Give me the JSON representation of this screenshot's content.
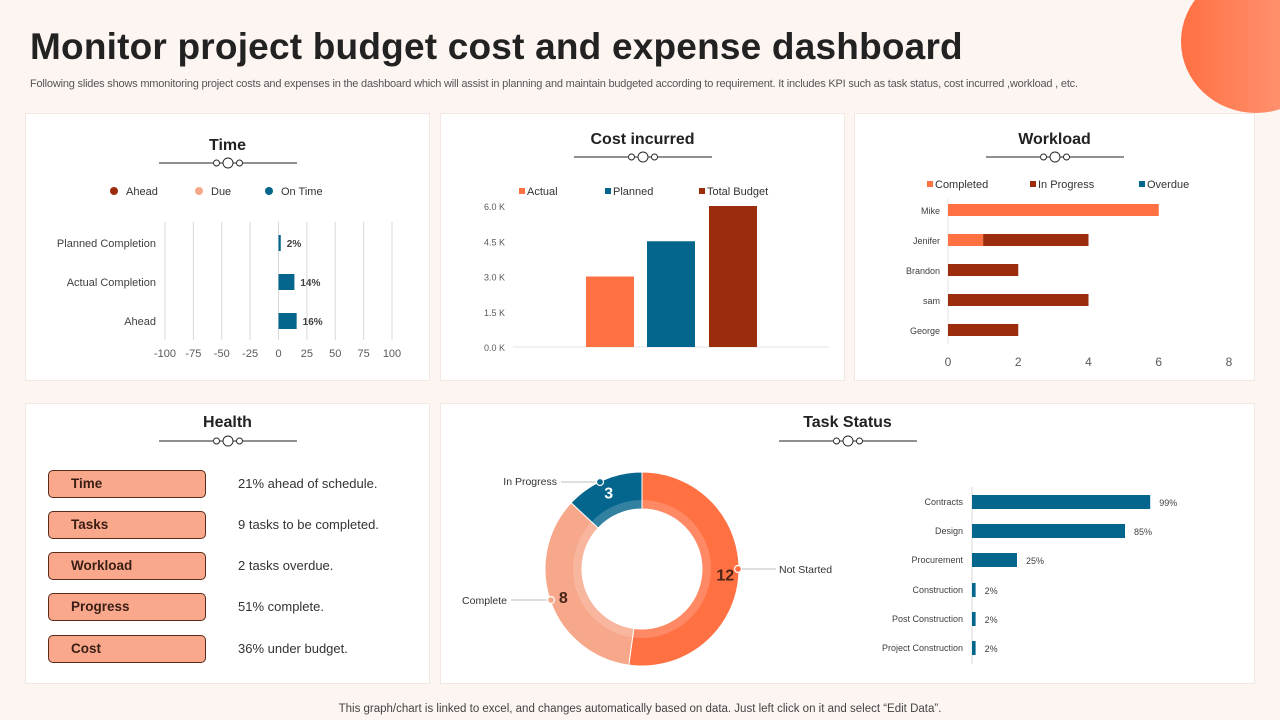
{
  "header": {
    "title": "Monitor project budget cost and expense dashboard",
    "subtitle": "Following slides shows mmonitoring project costs and expenses in the dashboard which will assist in planning and maintain budgeted according to requirement. It includes KPI such as task status, cost incurred ,workload , etc."
  },
  "footer": {
    "note": "This graph/chart is linked to excel,  and changes automatically based on data. Just left click on it and select “Edit Data”."
  },
  "colors": {
    "accent": "#ff7043",
    "dark_red": "#9b2c0c",
    "teal": "#05668d",
    "peach": "#f9a88c",
    "light_peach": "#f7a78a"
  },
  "cards": {
    "time": "Time",
    "cost": "Cost incurred",
    "workload": "Workload",
    "health": "Health",
    "task_status": "Task Status"
  },
  "health": {
    "rows": [
      {
        "label": "Time",
        "text": "21% ahead of schedule."
      },
      {
        "label": "Tasks",
        "text": "9 tasks to be completed."
      },
      {
        "label": "Workload",
        "text": "2 tasks overdue."
      },
      {
        "label": "Progress",
        "text": "51% complete."
      },
      {
        "label": "Cost",
        "text": "36% under budget."
      }
    ]
  },
  "chart_data": [
    {
      "id": "time",
      "type": "bar",
      "orientation": "horizontal",
      "title": "Time",
      "legend": [
        {
          "name": "Ahead",
          "color": "#9b2c0c"
        },
        {
          "name": "Due",
          "color": "#f7a78a"
        },
        {
          "name": "On Time",
          "color": "#05668d"
        }
      ],
      "legend_position": "top",
      "categories": [
        "Planned Completion",
        "Actual Completion",
        "Ahead"
      ],
      "values": [
        2,
        14,
        16
      ],
      "data_labels": [
        "2%",
        "14%",
        "16%"
      ],
      "xlim": [
        -100,
        100
      ],
      "xticks": [
        "-100",
        "-75",
        "-50",
        "-25",
        "0",
        "25",
        "50",
        "75",
        "100"
      ],
      "xtick_values": [
        -100,
        -75,
        -50,
        -25,
        0,
        25,
        50,
        75,
        100
      ],
      "grid": true,
      "bar_color": "#05668d"
    },
    {
      "id": "cost",
      "type": "bar",
      "title": "Cost incurred",
      "legend_position": "top",
      "series": [
        {
          "name": "Actual",
          "value": 3000,
          "color": "#ff7043"
        },
        {
          "name": "Planned",
          "value": 4500,
          "color": "#05668d"
        },
        {
          "name": "Total Budget",
          "value": 6000,
          "color": "#9b2c0c"
        }
      ],
      "ylim": [
        0,
        6000
      ],
      "yticks": [
        "0.0 K",
        "1.5 K",
        "3.0 K",
        "4.5 K",
        "6.0 K"
      ],
      "ytick_values": [
        0,
        1500,
        3000,
        4500,
        6000
      ]
    },
    {
      "id": "workload",
      "type": "bar",
      "orientation": "horizontal",
      "stacked": true,
      "title": "Workload",
      "legend_position": "top",
      "categories": [
        "Mike",
        "Jenifer",
        "Brandon",
        "sam",
        "George"
      ],
      "series": [
        {
          "name": "Completed",
          "color": "#ff7043",
          "values": [
            6,
            1,
            0,
            0,
            0
          ]
        },
        {
          "name": "In Progress",
          "color": "#9b2c0c",
          "values": [
            0,
            3,
            2,
            4,
            2
          ]
        },
        {
          "name": "Overdue",
          "color": "#05668d",
          "values": [
            0,
            0,
            0,
            0,
            0
          ]
        }
      ],
      "xlim": [
        0,
        8
      ],
      "xticks": [
        "0",
        "2",
        "4",
        "6",
        "8"
      ],
      "xtick_values": [
        0,
        2,
        4,
        6,
        8
      ]
    },
    {
      "id": "task_donut",
      "type": "pie",
      "donut": true,
      "title": "Task Status",
      "slices": [
        {
          "name": "Not Started",
          "value": 12,
          "color": "#ff7043"
        },
        {
          "name": "Complete",
          "value": 8,
          "color": "#f7a78a"
        },
        {
          "name": "In Progress",
          "value": 3,
          "color": "#05668d"
        }
      ]
    },
    {
      "id": "task_bars",
      "type": "bar",
      "orientation": "horizontal",
      "categories": [
        "Contracts",
        "Design",
        "Procurement",
        "Construction",
        "Post Construction",
        "Project Construction"
      ],
      "values": [
        99,
        85,
        25,
        2,
        2,
        2
      ],
      "data_labels": [
        "99%",
        "85%",
        "25%",
        "2%",
        "2%",
        "2%"
      ],
      "xlim": [
        0,
        100
      ],
      "bar_color": "#05668d"
    }
  ]
}
